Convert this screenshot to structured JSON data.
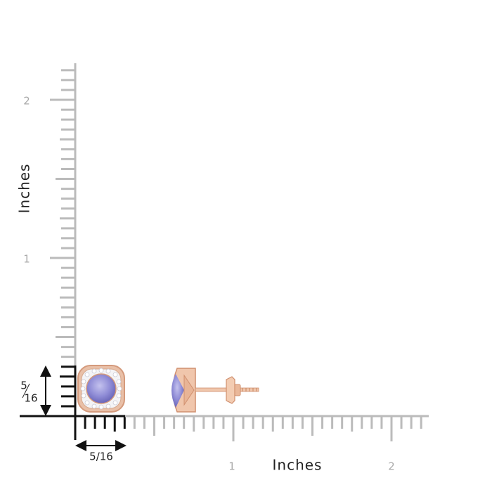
{
  "y_axis": {
    "label": "Inches",
    "ticks": [
      "1",
      "2"
    ]
  },
  "x_axis": {
    "label": "Inches",
    "ticks": [
      "1",
      "2"
    ]
  },
  "size": {
    "height_label": {
      "numerator": "5",
      "denominator": "16"
    },
    "width_label": "5/16"
  }
}
